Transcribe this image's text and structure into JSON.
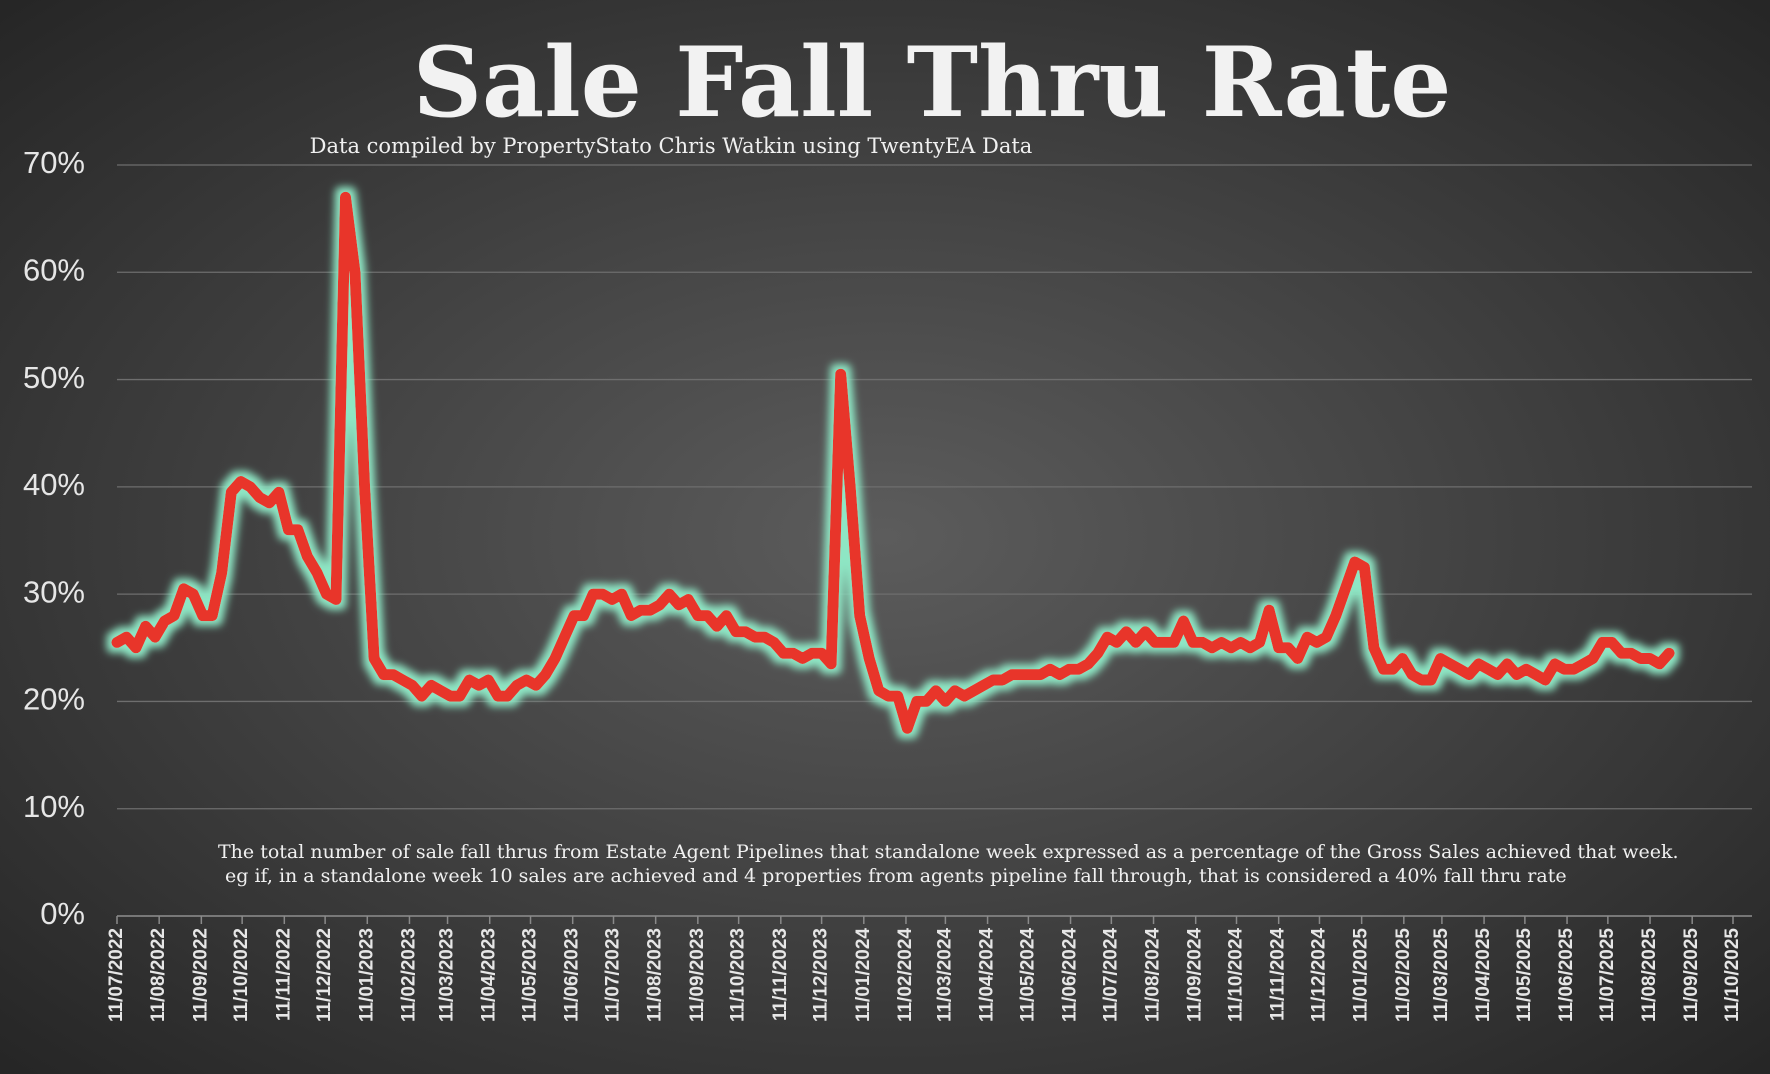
{
  "chart_data": {
    "type": "line",
    "title": "Sale Fall Thru Rate",
    "subtitle": "Data compiled by PropertyStato Chris Watkin using TwentyEA Data",
    "annotation": [
      "The total number of sale fall thrus from Estate Agent Pipelines that standalone week expressed as a percentage of the Gross Sales achieved that week.",
      "eg if, in a standalone week 10 sales are achieved and 4 properties from agents pipeline fall through, that is considered a 40%  fall thru rate"
    ],
    "x": [
      "11/07/2022",
      "18/07/2022",
      "25/07/2022",
      "01/08/2022",
      "08/08/2022",
      "15/08/2022",
      "22/08/2022",
      "29/08/2022",
      "05/09/2022",
      "12/09/2022",
      "19/09/2022",
      "26/09/2022",
      "03/10/2022",
      "10/10/2022",
      "17/10/2022",
      "24/10/2022",
      "31/10/2022",
      "07/11/2022",
      "14/11/2022",
      "21/11/2022",
      "28/11/2022",
      "05/12/2022",
      "12/12/2022",
      "19/12/2022",
      "26/12/2022",
      "02/01/2023",
      "09/01/2023",
      "16/01/2023",
      "23/01/2023",
      "30/01/2023",
      "06/02/2023",
      "13/02/2023",
      "20/02/2023",
      "27/02/2023",
      "06/03/2023",
      "13/03/2023",
      "20/03/2023",
      "27/03/2023",
      "03/04/2023",
      "10/04/2023",
      "17/04/2023",
      "24/04/2023",
      "01/05/2023",
      "08/05/2023",
      "15/05/2023",
      "22/05/2023",
      "29/05/2023",
      "05/06/2023",
      "12/06/2023",
      "19/06/2023",
      "26/06/2023",
      "03/07/2023",
      "10/07/2023",
      "17/07/2023",
      "24/07/2023",
      "31/07/2023",
      "07/08/2023",
      "14/08/2023",
      "21/08/2023",
      "28/08/2023",
      "04/09/2023",
      "11/09/2023",
      "18/09/2023",
      "25/09/2023",
      "02/10/2023",
      "09/10/2023",
      "16/10/2023",
      "23/10/2023",
      "30/10/2023",
      "06/11/2023",
      "13/11/2023",
      "20/11/2023",
      "27/11/2023",
      "04/12/2023",
      "11/12/2023",
      "18/12/2023",
      "25/12/2023",
      "01/01/2024",
      "08/01/2024",
      "15/01/2024",
      "22/01/2024",
      "29/01/2024",
      "05/02/2024",
      "12/02/2024",
      "19/02/2024",
      "26/02/2024",
      "04/03/2024",
      "11/03/2024",
      "18/03/2024",
      "25/03/2024",
      "01/04/2024",
      "08/04/2024",
      "15/04/2024",
      "22/04/2024",
      "29/04/2024",
      "06/05/2024",
      "13/05/2024",
      "20/05/2024",
      "27/05/2024",
      "03/06/2024",
      "10/06/2024",
      "17/06/2024",
      "24/06/2024",
      "01/07/2024",
      "08/07/2024",
      "15/07/2024",
      "22/07/2024",
      "29/07/2024",
      "05/08/2024",
      "12/08/2024",
      "19/08/2024",
      "26/08/2024",
      "02/09/2024",
      "09/09/2024",
      "16/09/2024",
      "23/09/2024",
      "30/09/2024",
      "07/10/2024",
      "14/10/2024",
      "21/10/2024",
      "28/10/2024",
      "04/11/2024",
      "11/11/2024",
      "18/11/2024",
      "25/11/2024",
      "02/12/2024",
      "09/12/2024",
      "16/12/2024",
      "23/12/2024",
      "30/12/2024",
      "06/01/2025",
      "13/01/2025",
      "20/01/2025",
      "27/01/2025",
      "03/02/2025",
      "10/02/2025",
      "17/02/2025",
      "24/02/2025",
      "03/03/2025",
      "10/03/2025",
      "17/03/2025",
      "24/03/2025",
      "31/03/2025",
      "07/04/2025",
      "14/04/2025",
      "21/04/2025",
      "28/04/2025",
      "05/05/2025",
      "12/05/2025",
      "19/05/2025",
      "26/05/2025",
      "02/06/2025",
      "09/06/2025",
      "16/06/2025",
      "23/06/2025",
      "30/06/2025",
      "07/07/2025",
      "14/07/2025",
      "21/07/2025",
      "28/07/2025",
      "04/08/2025",
      "11/08/2025",
      "18/08/2025",
      "25/08/2025"
    ],
    "series": [
      {
        "name": "Sale Fall Thru Rate",
        "color": "#e8352a",
        "glow_color": "#8ee6c4",
        "values": [
          25.5,
          26,
          25,
          27,
          26,
          27.5,
          28,
          30.5,
          30,
          28,
          28,
          32,
          39.5,
          40.5,
          40,
          39,
          38.5,
          39.5,
          36,
          36,
          33.5,
          32,
          30,
          29.5,
          67,
          60,
          40,
          24,
          22.5,
          22.5,
          22,
          21.5,
          20.5,
          21.5,
          21,
          20.5,
          20.5,
          22,
          21.5,
          22,
          20.5,
          20.5,
          21.5,
          22,
          21.5,
          22.5,
          24,
          26,
          28,
          28,
          30,
          30,
          29.5,
          30,
          28,
          28.5,
          28.5,
          29,
          30,
          29,
          29.5,
          28,
          28,
          27,
          28,
          26.5,
          26.5,
          26,
          26,
          25.5,
          24.5,
          24.5,
          24,
          24.5,
          24.5,
          23.5,
          50.5,
          40,
          28,
          24,
          21,
          20.5,
          20.5,
          17.5,
          20,
          20,
          21,
          20,
          21,
          20.5,
          21,
          21.5,
          22,
          22,
          22.5,
          22.5,
          22.5,
          22.5,
          23,
          22.5,
          23,
          23,
          23.5,
          24.5,
          26,
          25.5,
          26.5,
          25.5,
          26.5,
          25.5,
          25.5,
          25.5,
          27.5,
          25.5,
          25.5,
          25,
          25.5,
          25,
          25.5,
          25,
          25.5,
          28.5,
          25,
          25,
          24,
          26,
          25.5,
          26,
          28,
          30.5,
          33,
          32.5,
          25,
          23,
          23,
          24,
          22.5,
          22,
          22,
          24,
          23.5,
          23,
          22.5,
          23.5,
          23,
          22.5,
          23.5,
          22.5,
          23,
          22.5,
          22,
          23.5,
          23,
          23,
          23.5,
          24,
          25.5,
          25.5,
          24.5,
          24.5,
          24,
          24,
          23.5,
          24.5
        ]
      }
    ],
    "xlim": [
      "11/07/2022",
      "11/10/2025"
    ],
    "xticks": [
      "11/07/2022",
      "11/08/2022",
      "11/09/2022",
      "11/10/2022",
      "11/11/2022",
      "11/12/2022",
      "11/01/2023",
      "11/02/2023",
      "11/03/2023",
      "11/04/2023",
      "11/05/2023",
      "11/06/2023",
      "11/07/2023",
      "11/08/2023",
      "11/09/2023",
      "11/10/2023",
      "11/11/2023",
      "11/12/2023",
      "11/01/2024",
      "11/02/2024",
      "11/03/2024",
      "11/04/2024",
      "11/05/2024",
      "11/06/2024",
      "11/07/2024",
      "11/08/2024",
      "11/09/2024",
      "11/10/2024",
      "11/11/2024",
      "11/12/2024",
      "11/01/2025",
      "11/02/2025",
      "11/03/2025",
      "11/04/2025",
      "11/05/2025",
      "11/06/2025",
      "11/07/2025",
      "11/08/2025",
      "11/09/2025",
      "11/10/2025"
    ],
    "ylim": [
      0,
      70
    ],
    "yticks": [
      {
        "value": 0,
        "label": "0%"
      },
      {
        "value": 10,
        "label": "10%"
      },
      {
        "value": 20,
        "label": "20%"
      },
      {
        "value": 30,
        "label": "30%"
      },
      {
        "value": 40,
        "label": "40%"
      },
      {
        "value": 50,
        "label": "50%"
      },
      {
        "value": 60,
        "label": "60%"
      },
      {
        "value": 70,
        "label": "70%"
      }
    ],
    "grid": true
  }
}
